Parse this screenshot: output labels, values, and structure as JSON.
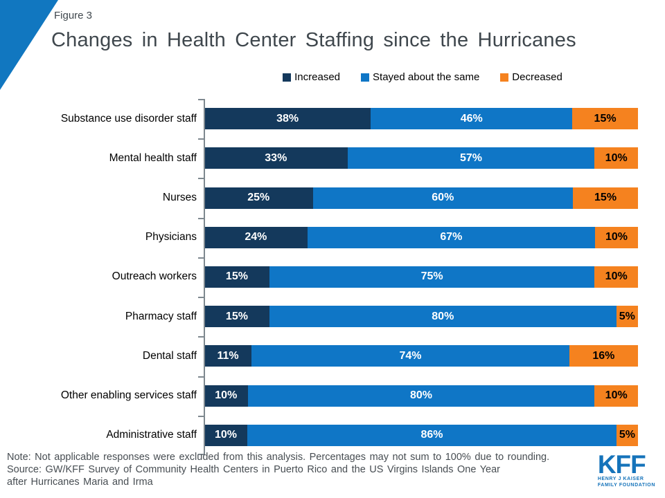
{
  "header": {
    "figure_label": "Figure 3",
    "title": "Changes in Health Center Staffing since the Hurricanes"
  },
  "chart_data": {
    "type": "bar",
    "orientation": "horizontal",
    "stacked": true,
    "title": "Changes in Health Center Staffing since the Hurricanes",
    "value_suffix": "%",
    "xlim": [
      0,
      100
    ],
    "grid": false,
    "legend_position": "top",
    "categories": [
      "Substance use disorder staff",
      "Mental health staff",
      "Nurses",
      "Physicians",
      "Outreach workers",
      "Pharmacy staff",
      "Dental staff",
      "Other enabling services staff",
      "Administrative staff"
    ],
    "series": [
      {
        "name": "Increased",
        "color": "#14395C",
        "label_color": "#FFFFFF",
        "values": [
          38,
          33,
          25,
          24,
          15,
          15,
          11,
          10,
          10
        ]
      },
      {
        "name": "Stayed about the same",
        "color": "#0F76C6",
        "label_color": "#FFFFFF",
        "values": [
          46,
          57,
          60,
          67,
          75,
          80,
          74,
          80,
          86
        ]
      },
      {
        "name": "Decreased",
        "color": "#F5821F",
        "label_color": "#000000",
        "values": [
          15,
          10,
          15,
          10,
          10,
          5,
          16,
          10,
          5
        ]
      }
    ]
  },
  "footer": {
    "note_lines": [
      "Note: Not applicable responses were excluded from this analysis. Percentages may not sum to 100% due to rounding.",
      "Source: GW/KFF Survey of Community Health Centers in Puerto Rico and the US Virgins Islands One Year",
      "after Hurricanes Maria and Irma"
    ],
    "logo": {
      "acronym": "KFF",
      "tagline_line1": "HENRY J KAISER",
      "tagline_line2": "FAMILY FOUNDATION"
    }
  },
  "colors": {
    "triangle": "#1177C0",
    "title_text": "#3F474D",
    "note_text": "#474D52",
    "axis": "#7E888F",
    "logo_blue": "#1573BA"
  }
}
